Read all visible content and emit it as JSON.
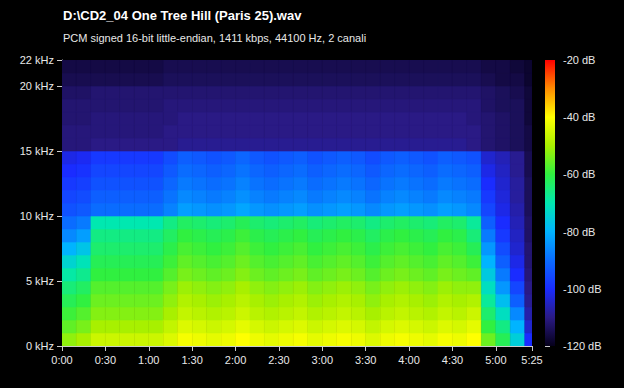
{
  "chart_data": {
    "type": "heatmap",
    "title": "D:\\CD2_04 One Tree Hill (Paris 25).wav",
    "subtitle": "PCM signed 16-bit little-endian, 1411 kbps, 44100 Hz, 2 canali",
    "xlim": [
      0,
      325
    ],
    "xticks": [
      {
        "value": 0,
        "label": "0:00"
      },
      {
        "value": 30,
        "label": "0:30"
      },
      {
        "value": 60,
        "label": "1:00"
      },
      {
        "value": 90,
        "label": "1:30"
      },
      {
        "value": 120,
        "label": "2:00"
      },
      {
        "value": 150,
        "label": "2:30"
      },
      {
        "value": 180,
        "label": "3:00"
      },
      {
        "value": 210,
        "label": "3:30"
      },
      {
        "value": 240,
        "label": "4:00"
      },
      {
        "value": 270,
        "label": "4:30"
      },
      {
        "value": 300,
        "label": "5:00"
      },
      {
        "value": 325,
        "label": "5:25"
      }
    ],
    "ylim": [
      0,
      22
    ],
    "yticks": [
      {
        "value": 0,
        "label": "0 kHz"
      },
      {
        "value": 5,
        "label": "5 kHz"
      },
      {
        "value": 10,
        "label": "10 kHz"
      },
      {
        "value": 15,
        "label": "15 kHz"
      },
      {
        "value": 20,
        "label": "20 kHz"
      },
      {
        "value": 22,
        "label": "22 kHz"
      }
    ],
    "x_bins": [
      0,
      10,
      20,
      30,
      40,
      50,
      60,
      70,
      80,
      90,
      100,
      110,
      120,
      130,
      140,
      150,
      160,
      170,
      180,
      190,
      200,
      210,
      220,
      230,
      240,
      250,
      260,
      270,
      280,
      290,
      300,
      310,
      320,
      325
    ],
    "y_bins": [
      0,
      1,
      2,
      3,
      4,
      5,
      6,
      7,
      8,
      9,
      10,
      11,
      12,
      13,
      14,
      15,
      16,
      17,
      18,
      19,
      20,
      21,
      22
    ],
    "cells": [
      [
        -52,
        -50,
        -46,
        -46,
        -46,
        -46,
        -46,
        -44,
        -41,
        -42,
        -43,
        -42,
        -40,
        -42,
        -43,
        -42,
        -41,
        -43,
        -42,
        -41,
        -42,
        -44,
        -42,
        -41,
        -42,
        -43,
        -41,
        -42,
        -40,
        -55,
        -62,
        -75,
        -100
      ],
      [
        -56,
        -54,
        -50,
        -50,
        -50,
        -50,
        -50,
        -47,
        -44,
        -45,
        -46,
        -45,
        -43,
        -45,
        -46,
        -45,
        -44,
        -46,
        -45,
        -44,
        -45,
        -47,
        -45,
        -44,
        -45,
        -46,
        -44,
        -45,
        -43,
        -60,
        -66,
        -80,
        -104
      ],
      [
        -59,
        -57,
        -53,
        -53,
        -53,
        -53,
        -53,
        -50,
        -47,
        -48,
        -49,
        -48,
        -46,
        -48,
        -49,
        -48,
        -47,
        -49,
        -48,
        -47,
        -48,
        -50,
        -48,
        -47,
        -48,
        -49,
        -47,
        -48,
        -46,
        -64,
        -72,
        -86,
        -107
      ],
      [
        -62,
        -60,
        -55,
        -55,
        -55,
        -55,
        -55,
        -52,
        -49,
        -50,
        -51,
        -50,
        -48,
        -50,
        -51,
        -50,
        -49,
        -51,
        -50,
        -49,
        -50,
        -52,
        -50,
        -49,
        -50,
        -51,
        -49,
        -50,
        -49,
        -68,
        -78,
        -92,
        -109
      ],
      [
        -65,
        -63,
        -57,
        -57,
        -57,
        -57,
        -57,
        -54,
        -51,
        -52,
        -53,
        -52,
        -50,
        -52,
        -53,
        -52,
        -51,
        -53,
        -52,
        -51,
        -52,
        -54,
        -52,
        -51,
        -52,
        -53,
        -51,
        -52,
        -52,
        -72,
        -84,
        -96,
        -110
      ],
      [
        -69,
        -67,
        -60,
        -60,
        -60,
        -60,
        -60,
        -57,
        -54,
        -55,
        -56,
        -55,
        -53,
        -55,
        -56,
        -55,
        -54,
        -56,
        -55,
        -54,
        -55,
        -57,
        -55,
        -54,
        -55,
        -56,
        -54,
        -55,
        -56,
        -76,
        -88,
        -100,
        -111
      ],
      [
        -74,
        -71,
        -62,
        -62,
        -62,
        -62,
        -62,
        -59,
        -56,
        -57,
        -58,
        -57,
        -55,
        -57,
        -58,
        -57,
        -56,
        -58,
        -57,
        -56,
        -57,
        -59,
        -57,
        -56,
        -57,
        -58,
        -56,
        -57,
        -59,
        -80,
        -92,
        -102,
        -112
      ],
      [
        -80,
        -77,
        -64,
        -64,
        -64,
        -64,
        -64,
        -61,
        -58,
        -59,
        -60,
        -59,
        -57,
        -59,
        -60,
        -59,
        -58,
        -60,
        -59,
        -58,
        -59,
        -61,
        -59,
        -58,
        -59,
        -60,
        -58,
        -59,
        -62,
        -84,
        -95,
        -104,
        -112
      ],
      [
        -86,
        -83,
        -66,
        -66,
        -66,
        -66,
        -66,
        -63,
        -60,
        -61,
        -62,
        -61,
        -59,
        -61,
        -62,
        -61,
        -60,
        -62,
        -61,
        -60,
        -61,
        -63,
        -61,
        -60,
        -61,
        -62,
        -60,
        -61,
        -65,
        -88,
        -98,
        -105,
        -113
      ],
      [
        -90,
        -88,
        -70,
        -70,
        -70,
        -70,
        -70,
        -66,
        -63,
        -64,
        -65,
        -64,
        -62,
        -64,
        -65,
        -64,
        -63,
        -65,
        -64,
        -63,
        -64,
        -66,
        -64,
        -63,
        -64,
        -65,
        -63,
        -64,
        -68,
        -92,
        -100,
        -106,
        -113
      ],
      [
        -94,
        -93,
        -90,
        -90,
        -90,
        -90,
        -90,
        -87,
        -83,
        -84,
        -85,
        -84,
        -82,
        -84,
        -85,
        -84,
        -83,
        -85,
        -84,
        -83,
        -84,
        -86,
        -84,
        -83,
        -84,
        -85,
        -83,
        -84,
        -86,
        -96,
        -102,
        -107,
        -114
      ],
      [
        -96,
        -95,
        -92,
        -92,
        -92,
        -92,
        -92,
        -89,
        -86,
        -87,
        -88,
        -87,
        -85,
        -87,
        -88,
        -87,
        -86,
        -88,
        -87,
        -86,
        -87,
        -89,
        -87,
        -86,
        -87,
        -88,
        -86,
        -87,
        -88,
        -98,
        -103,
        -108,
        -114
      ],
      [
        -98,
        -97,
        -94,
        -94,
        -94,
        -94,
        -94,
        -91,
        -88,
        -89,
        -90,
        -89,
        -87,
        -89,
        -90,
        -89,
        -88,
        -90,
        -89,
        -88,
        -89,
        -91,
        -89,
        -88,
        -89,
        -90,
        -88,
        -89,
        -90,
        -100,
        -104,
        -108,
        -114
      ],
      [
        -100,
        -99,
        -96,
        -96,
        -96,
        -96,
        -96,
        -93,
        -90,
        -91,
        -92,
        -91,
        -89,
        -91,
        -92,
        -91,
        -90,
        -92,
        -91,
        -90,
        -91,
        -93,
        -91,
        -90,
        -91,
        -92,
        -90,
        -91,
        -92,
        -102,
        -105,
        -109,
        -115
      ],
      [
        -102,
        -101,
        -98,
        -98,
        -98,
        -98,
        -98,
        -95,
        -92,
        -93,
        -94,
        -93,
        -91,
        -93,
        -94,
        -93,
        -92,
        -94,
        -93,
        -92,
        -93,
        -95,
        -93,
        -92,
        -93,
        -94,
        -92,
        -93,
        -94,
        -104,
        -106,
        -109,
        -115
      ],
      [
        -111,
        -111,
        -110,
        -110,
        -110,
        -110,
        -110,
        -110,
        -109,
        -109,
        -109,
        -109,
        -109,
        -109,
        -109,
        -109,
        -109,
        -109,
        -109,
        -109,
        -109,
        -109,
        -109,
        -109,
        -109,
        -109,
        -109,
        -109,
        -110,
        -112,
        -113,
        -114,
        -116
      ],
      [
        -111,
        -111,
        -111,
        -111,
        -111,
        -111,
        -111,
        -110,
        -110,
        -110,
        -110,
        -110,
        -110,
        -110,
        -110,
        -110,
        -110,
        -110,
        -110,
        -110,
        -110,
        -110,
        -110,
        -110,
        -110,
        -110,
        -110,
        -110,
        -110,
        -112,
        -113,
        -114,
        -116
      ],
      [
        -112,
        -112,
        -111,
        -111,
        -111,
        -111,
        -111,
        -111,
        -110,
        -110,
        -110,
        -110,
        -110,
        -110,
        -110,
        -110,
        -110,
        -110,
        -110,
        -110,
        -110,
        -110,
        -110,
        -110,
        -110,
        -110,
        -110,
        -110,
        -111,
        -112,
        -113,
        -114,
        -117
      ],
      [
        -112,
        -112,
        -112,
        -112,
        -112,
        -112,
        -112,
        -111,
        -111,
        -111,
        -111,
        -111,
        -111,
        -111,
        -111,
        -111,
        -111,
        -111,
        -111,
        -111,
        -111,
        -111,
        -111,
        -111,
        -111,
        -111,
        -111,
        -111,
        -111,
        -113,
        -114,
        -114,
        -117
      ],
      [
        -113,
        -113,
        -112,
        -112,
        -112,
        -112,
        -112,
        -112,
        -112,
        -112,
        -112,
        -112,
        -112,
        -112,
        -112,
        -112,
        -112,
        -112,
        -112,
        -112,
        -112,
        -112,
        -112,
        -112,
        -112,
        -112,
        -112,
        -112,
        -112,
        -113,
        -114,
        -115,
        -117
      ],
      [
        -115,
        -115,
        -115,
        -115,
        -115,
        -115,
        -115,
        -114,
        -114,
        -114,
        -114,
        -114,
        -114,
        -114,
        -114,
        -114,
        -114,
        -114,
        -114,
        -114,
        -114,
        -114,
        -114,
        -114,
        -114,
        -114,
        -114,
        -114,
        -114,
        -115,
        -116,
        -116,
        -118
      ],
      [
        -116,
        -116,
        -116,
        -116,
        -116,
        -116,
        -116,
        -115,
        -115,
        -115,
        -115,
        -115,
        -115,
        -115,
        -115,
        -115,
        -115,
        -115,
        -115,
        -115,
        -115,
        -115,
        -115,
        -115,
        -115,
        -115,
        -115,
        -115,
        -115,
        -116,
        -116,
        -117,
        -118
      ]
    ],
    "colorbar": {
      "range": [
        -120,
        -20
      ],
      "ticks": [
        {
          "value": -120,
          "label": "-120 dB"
        },
        {
          "value": -100,
          "label": "-100 dB"
        },
        {
          "value": -80,
          "label": "-80 dB"
        },
        {
          "value": -60,
          "label": "-60 dB"
        },
        {
          "value": -40,
          "label": "-40 dB"
        },
        {
          "value": -20,
          "label": "-20 dB"
        }
      ]
    }
  }
}
